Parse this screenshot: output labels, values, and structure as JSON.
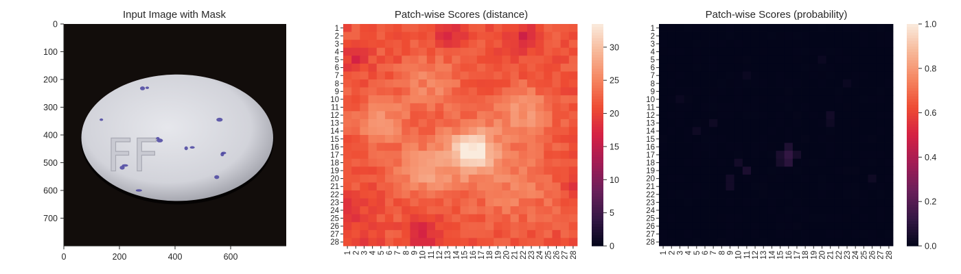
{
  "chart_data": [
    {
      "type": "image",
      "title": "Input Image with Mask",
      "xlim": [
        0,
        800
      ],
      "ylim": [
        800,
        0
      ],
      "x_ticks": [
        0,
        200,
        400,
        600
      ],
      "y_ticks": [
        0,
        100,
        200,
        300,
        400,
        500,
        600,
        700
      ],
      "object": {
        "kind": "pill",
        "imprint": "FF",
        "center": [
          408,
          410
        ],
        "radii": [
          345,
          228
        ],
        "body_color": "#dcdde3",
        "background_color": "#120d0b",
        "speck_color": "#4a44a0",
        "specks": [
          [
            300,
            230
          ],
          [
            283,
            232
          ],
          [
            270,
            600
          ],
          [
            440,
            448
          ],
          [
            462,
            445
          ],
          [
            345,
            420
          ],
          [
            338,
            412
          ],
          [
            210,
            518
          ],
          [
            220,
            510
          ],
          [
            570,
            470
          ],
          [
            575,
            465
          ],
          [
            560,
            345
          ],
          [
            135,
            345
          ],
          [
            550,
            552
          ]
        ]
      }
    },
    {
      "type": "heatmap",
      "title": "Patch-wise Scores (distance)",
      "x_labels": [
        "1",
        "2",
        "3",
        "4",
        "5",
        "6",
        "7",
        "8",
        "9",
        "10",
        "11",
        "12",
        "13",
        "14",
        "15",
        "16",
        "17",
        "18",
        "19",
        "20",
        "21",
        "22",
        "23",
        "24",
        "25",
        "26",
        "27",
        "28"
      ],
      "y_labels": [
        "1",
        "2",
        "3",
        "4",
        "5",
        "6",
        "7",
        "8",
        "9",
        "10",
        "11",
        "12",
        "13",
        "14",
        "15",
        "16",
        "17",
        "18",
        "19",
        "20",
        "21",
        "22",
        "23",
        "24",
        "25",
        "26",
        "27",
        "28"
      ],
      "vmin": 0,
      "vmax": 33.5,
      "colorbar_ticks": [
        0,
        5,
        10,
        15,
        20,
        25,
        30
      ],
      "colormap": "rocket",
      "field": {
        "base": 21.5,
        "blobs": [
          {
            "row": 16.5,
            "col": 16,
            "sigma": 1.8,
            "amp": 10.5
          },
          {
            "row": 17,
            "col": 15,
            "sigma": 3.2,
            "amp": 2.5
          },
          {
            "row": 19,
            "col": 10,
            "sigma": 2.2,
            "amp": 5.5
          },
          {
            "row": 13,
            "col": 5,
            "sigma": 2.2,
            "amp": 4.5
          },
          {
            "row": 12,
            "col": 22,
            "sigma": 2.4,
            "amp": 5
          },
          {
            "row": 8,
            "col": 11,
            "sigma": 2.5,
            "amp": 3.5
          },
          {
            "row": 21,
            "col": 21,
            "sigma": 3.5,
            "amp": 3
          },
          {
            "row": 2,
            "col": 13,
            "sigma": 1.2,
            "amp": -5
          },
          {
            "row": 2,
            "col": 22,
            "sigma": 1.2,
            "amp": -4
          },
          {
            "row": 27,
            "col": 10,
            "sigma": 1.2,
            "amp": -5
          },
          {
            "row": 5,
            "col": 2,
            "sigma": 1.0,
            "amp": -4
          },
          {
            "row": 24,
            "col": 1,
            "sigma": 1.2,
            "amp": -4
          },
          {
            "row": 21,
            "col": 28,
            "sigma": 1.0,
            "amp": -4
          },
          {
            "row": 28,
            "col": 3,
            "sigma": 1.0,
            "amp": -4
          }
        ],
        "noise": 1.5
      }
    },
    {
      "type": "heatmap",
      "title": "Patch-wise Scores (probability)",
      "x_labels": [
        "1",
        "2",
        "3",
        "4",
        "5",
        "6",
        "7",
        "8",
        "9",
        "10",
        "11",
        "12",
        "13",
        "14",
        "15",
        "16",
        "17",
        "18",
        "19",
        "20",
        "21",
        "22",
        "23",
        "24",
        "25",
        "26",
        "27",
        "28"
      ],
      "y_labels": [
        "1",
        "2",
        "3",
        "4",
        "5",
        "6",
        "7",
        "8",
        "9",
        "10",
        "11",
        "12",
        "13",
        "14",
        "15",
        "16",
        "17",
        "18",
        "19",
        "20",
        "21",
        "22",
        "23",
        "24",
        "25",
        "26",
        "27",
        "28"
      ],
      "vmin": 0,
      "vmax": 1.0,
      "colorbar_ticks": [
        "0.0",
        "0.2",
        "0.4",
        "0.6",
        "0.8",
        "1.0"
      ],
      "colormap": "rocket",
      "field": {
        "base": 0.0,
        "cells": [
          {
            "row": 17,
            "col": 16,
            "v": 0.12
          },
          {
            "row": 18,
            "col": 16,
            "v": 0.1
          },
          {
            "row": 16,
            "col": 16,
            "v": 0.07
          },
          {
            "row": 17,
            "col": 15,
            "v": 0.06
          },
          {
            "row": 17,
            "col": 17,
            "v": 0.05
          },
          {
            "row": 18,
            "col": 15,
            "v": 0.05
          },
          {
            "row": 19,
            "col": 11,
            "v": 0.06
          },
          {
            "row": 18,
            "col": 10,
            "v": 0.04
          },
          {
            "row": 20,
            "col": 9,
            "v": 0.04
          },
          {
            "row": 21,
            "col": 9,
            "v": 0.04
          },
          {
            "row": 12,
            "col": 21,
            "v": 0.04
          },
          {
            "row": 13,
            "col": 21,
            "v": 0.03
          },
          {
            "row": 13,
            "col": 7,
            "v": 0.03
          },
          {
            "row": 14,
            "col": 5,
            "v": 0.03
          },
          {
            "row": 10,
            "col": 3,
            "v": 0.02
          },
          {
            "row": 20,
            "col": 26,
            "v": 0.03
          },
          {
            "row": 5,
            "col": 20,
            "v": 0.02
          },
          {
            "row": 8,
            "col": 23,
            "v": 0.02
          },
          {
            "row": 7,
            "col": 11,
            "v": 0.02
          }
        ],
        "noise": 0.004
      }
    }
  ]
}
